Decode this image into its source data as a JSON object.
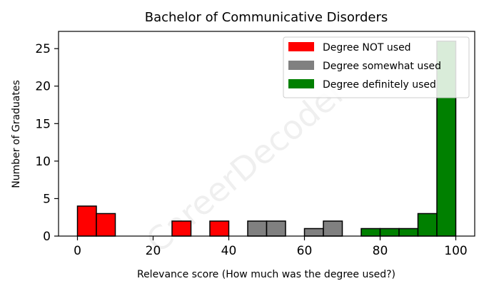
{
  "chart_data": {
    "type": "bar",
    "title": "Bachelor of Communicative Disorders",
    "xlabel": "Relevance score (How much was the degree used?)",
    "ylabel": "Number of Graduates",
    "xlim": [
      -5,
      105
    ],
    "ylim": [
      0,
      27.3
    ],
    "xticks": [
      0,
      20,
      40,
      60,
      80,
      100
    ],
    "yticks": [
      0,
      5,
      10,
      15,
      20,
      25
    ],
    "bin_width": 5,
    "grid": false,
    "legend_position": "top-right",
    "watermark": "CareerDecoder",
    "series": [
      {
        "name": "Degree NOT used",
        "color": "#ff0000",
        "bins": [
          {
            "x": 0,
            "value": 4
          },
          {
            "x": 5,
            "value": 3
          },
          {
            "x": 25,
            "value": 2
          },
          {
            "x": 35,
            "value": 2
          }
        ]
      },
      {
        "name": "Degree somewhat used",
        "color": "#808080",
        "bins": [
          {
            "x": 45,
            "value": 2
          },
          {
            "x": 50,
            "value": 2
          },
          {
            "x": 60,
            "value": 1
          },
          {
            "x": 65,
            "value": 2
          }
        ]
      },
      {
        "name": "Degree definitely used",
        "color": "#008000",
        "bins": [
          {
            "x": 75,
            "value": 1
          },
          {
            "x": 80,
            "value": 1
          },
          {
            "x": 85,
            "value": 1
          },
          {
            "x": 90,
            "value": 3
          },
          {
            "x": 95,
            "value": 26
          }
        ]
      }
    ]
  }
}
